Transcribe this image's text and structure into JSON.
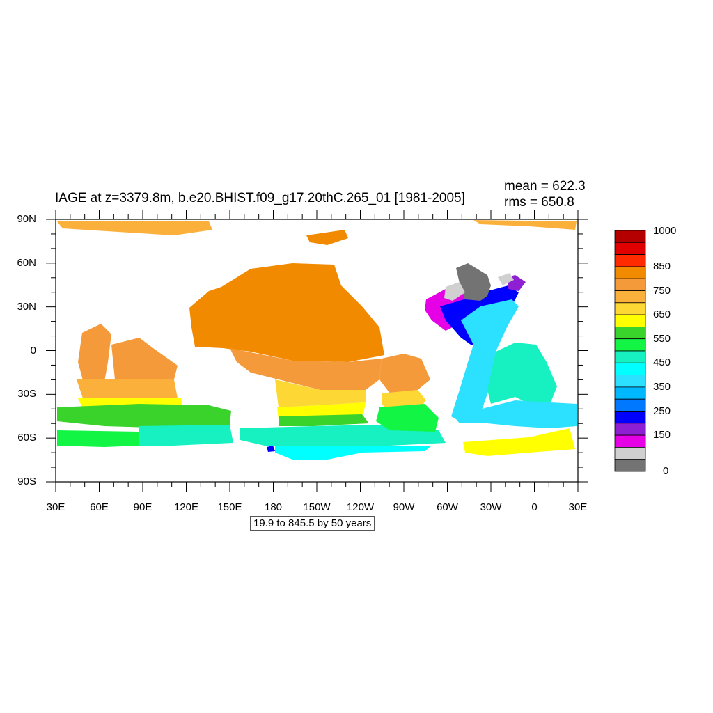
{
  "title": "IAGE at z=3379.8m, b.e20.BHIST.f09_g17.20thC.265_01 [1981-2005]",
  "stats": {
    "mean": "mean = 622.3",
    "rms": "rms = 650.8"
  },
  "info_box": "19.9 to 845.5 by 50 years",
  "axes": {
    "y_ticks": [
      "90N",
      "60N",
      "30N",
      "0",
      "30S",
      "60S",
      "90S"
    ],
    "x_ticks": [
      "30E",
      "60E",
      "90E",
      "120E",
      "150E",
      "180",
      "150W",
      "120W",
      "90W",
      "60W",
      "30W",
      "0",
      "30E"
    ]
  },
  "colorbar": {
    "labels": [
      "1000",
      "850",
      "750",
      "650",
      "550",
      "450",
      "350",
      "250",
      "150",
      "0"
    ],
    "colors": [
      "#b40000",
      "#e00000",
      "#ff2a00",
      "#f28a00",
      "#f59a3a",
      "#fbb03b",
      "#fdd835",
      "#ffff00",
      "#39d32b",
      "#13f545",
      "#17f0c0",
      "#00ffff",
      "#2ce0ff",
      "#00b8ff",
      "#0078ff",
      "#0000ff",
      "#8e1fd2",
      "#e600e6",
      "#d0d0d0",
      "#737373"
    ]
  },
  "map_colors": {
    "orange": "#f28a00",
    "lightorange": "#f59a3a",
    "amber": "#fbb03b",
    "gold": "#fdd835",
    "yellow": "#ffff00",
    "green": "#39d32b",
    "brightgreen": "#13f545",
    "aqua": "#17f0c0",
    "cyan": "#00ffff",
    "skyblue": "#2ce0ff",
    "blue": "#0000ff",
    "purple": "#8e1fd2",
    "magenta": "#e600e6",
    "lightgray": "#d0d0d0",
    "gray": "#737373"
  }
}
